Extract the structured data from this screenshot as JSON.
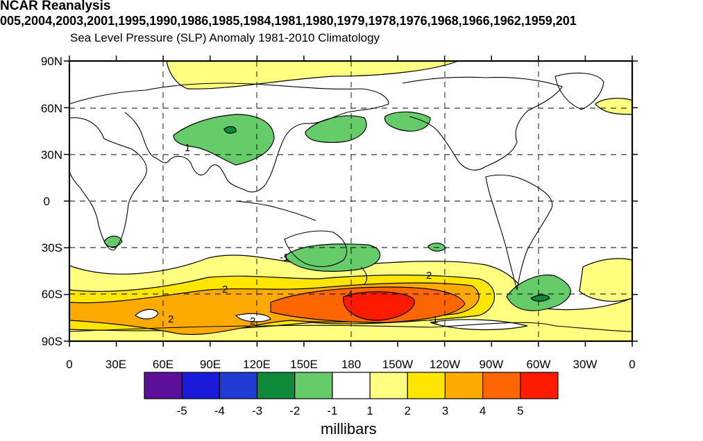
{
  "title": "NCAR Reanalysis",
  "years": "005,2004,2003,2001,1995,1990,1986,1985,1984,1981,1980,1979,1978,1976,1968,1966,1962,1959,201",
  "subtitle": "Sea Level Pressure (SLP) Anomaly  1981-2010 Climatology",
  "lat_labels": [
    "90N",
    "60N",
    "30N",
    "0",
    "30S",
    "60S",
    "90S"
  ],
  "lon_labels": [
    "0",
    "30E",
    "60E",
    "90E",
    "120E",
    "150E",
    "180",
    "150W",
    "120W",
    "90W",
    "60W",
    "30W",
    "0"
  ],
  "colorbar": {
    "colors": [
      "#5b0f9a",
      "#1a1ad8",
      "#1f3bd1",
      "#0f8a3a",
      "#66cc6a",
      "#ffffff",
      "#ffff80",
      "#ffe600",
      "#ffaa00",
      "#ff6600",
      "#ff1a00"
    ],
    "labels": [
      "-5",
      "-4",
      "-3",
      "-2",
      "-1",
      "1",
      "2",
      "3",
      "4",
      "5"
    ],
    "unit": "millibars"
  },
  "contour_labels": [
    "1",
    "-1",
    "2",
    "2",
    "2",
    "2",
    "4",
    "-1",
    "2"
  ]
}
